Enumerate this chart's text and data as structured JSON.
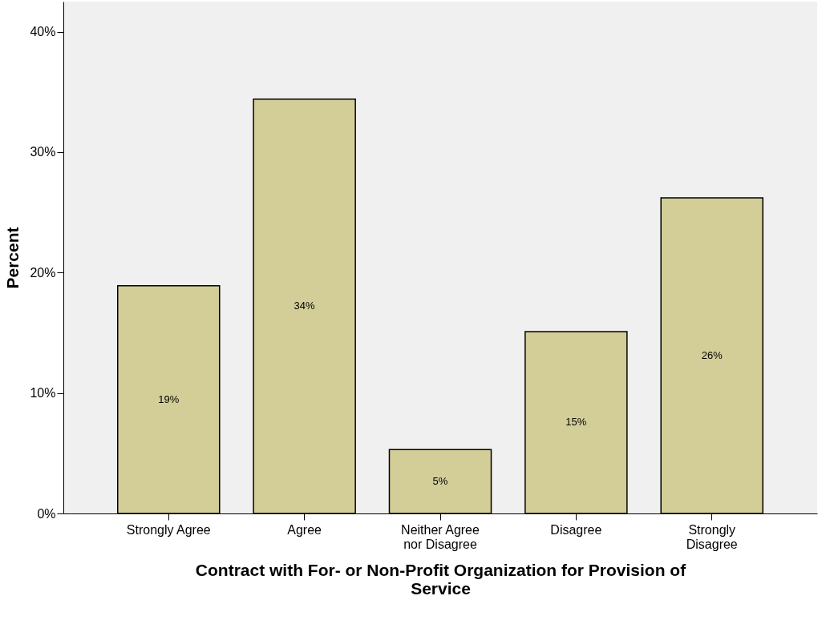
{
  "chart_data": {
    "type": "bar",
    "xlabel": "Contract with For- or Non-Profit Organization for Provision of\nService",
    "ylabel": "Percent",
    "categories": [
      "Strongly Agree",
      "Agree",
      "Neither Agree\nnor Disagree",
      "Disagree",
      "Strongly\nDisagree"
    ],
    "values": [
      18.9,
      34.4,
      5.3,
      15.1,
      26.2
    ],
    "value_labels": [
      "19%",
      "34%",
      "5%",
      "15%",
      "26%"
    ],
    "color": "#d3ce97",
    "ylim": [
      0,
      42.5
    ],
    "yticks": [
      {
        "value": 0,
        "label": "0%"
      },
      {
        "value": 10,
        "label": "10%"
      },
      {
        "value": 20,
        "label": "20%"
      },
      {
        "value": 30,
        "label": "30%"
      },
      {
        "value": 40,
        "label": "40%"
      }
    ],
    "grid": false
  }
}
